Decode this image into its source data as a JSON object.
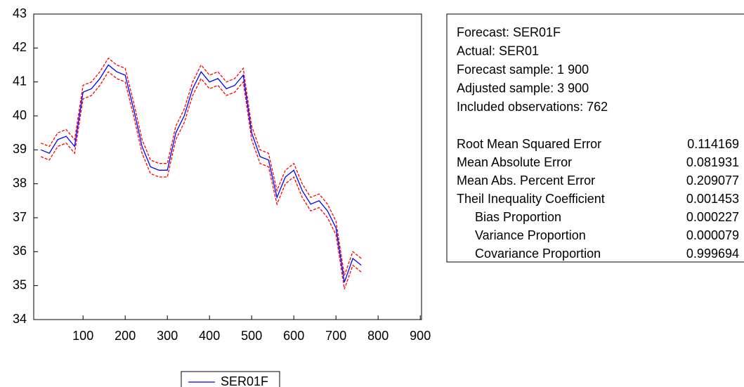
{
  "chart_data": {
    "type": "line",
    "x": [
      0,
      20,
      40,
      60,
      80,
      100,
      120,
      140,
      160,
      180,
      200,
      220,
      240,
      260,
      280,
      300,
      320,
      340,
      360,
      380,
      400,
      420,
      440,
      460,
      480,
      500,
      520,
      540,
      560,
      580,
      600,
      620,
      640,
      660,
      680,
      700,
      720,
      740,
      760
    ],
    "series": [
      {
        "name": "SER01F",
        "color": "#0000ff",
        "values": [
          39.0,
          38.9,
          39.3,
          39.4,
          39.1,
          40.7,
          40.8,
          41.1,
          41.5,
          41.3,
          41.2,
          40.2,
          39.1,
          38.5,
          38.4,
          38.4,
          39.5,
          40.0,
          40.8,
          41.3,
          41.0,
          41.1,
          40.8,
          40.9,
          41.2,
          39.5,
          38.8,
          38.7,
          37.6,
          38.2,
          38.4,
          37.8,
          37.4,
          37.5,
          37.2,
          36.7,
          35.1,
          35.8,
          35.6
        ]
      },
      {
        "color": "#ff0000",
        "dashed": true,
        "values": [
          39.2,
          39.1,
          39.5,
          39.6,
          39.3,
          40.9,
          41.0,
          41.3,
          41.7,
          41.5,
          41.4,
          40.4,
          39.3,
          38.7,
          38.6,
          38.6,
          39.7,
          40.2,
          41.0,
          41.5,
          41.2,
          41.3,
          41.0,
          41.1,
          41.4,
          39.7,
          39.0,
          38.9,
          37.8,
          38.4,
          38.6,
          38.0,
          37.6,
          37.7,
          37.4,
          36.9,
          35.3,
          36.0,
          35.8
        ]
      },
      {
        "color": "#ff0000",
        "dashed": true,
        "values": [
          38.8,
          38.7,
          39.1,
          39.2,
          38.9,
          40.5,
          40.6,
          40.9,
          41.3,
          41.1,
          41.0,
          40.0,
          38.9,
          38.3,
          38.2,
          38.2,
          39.3,
          39.8,
          40.6,
          41.1,
          40.8,
          40.9,
          40.6,
          40.7,
          41.0,
          39.3,
          38.6,
          38.5,
          37.4,
          38.0,
          38.2,
          37.6,
          37.2,
          37.3,
          37.0,
          36.5,
          34.9,
          35.6,
          35.4
        ]
      }
    ],
    "xlim": [
      -17,
      903
    ],
    "xticks": [
      100,
      200,
      300,
      400,
      500,
      600,
      700,
      800,
      900
    ],
    "ylim": [
      34,
      43
    ],
    "yticks": [
      34,
      35,
      36,
      37,
      38,
      39,
      40,
      41,
      42,
      43
    ]
  },
  "stats_box": {
    "header_lines": [
      "Forecast: SER01F",
      "Actual: SER01",
      "Forecast sample: 1 900",
      "Adjusted sample: 3 900",
      "Included observations: 762"
    ],
    "rows": [
      {
        "label": "Root Mean Squared Error",
        "value": 0.114169
      },
      {
        "label": "Mean Absolute Error",
        "value": 0.081931
      },
      {
        "label": "Mean Abs. Percent Error",
        "value": 0.209077
      },
      {
        "label": "Theil Inequality Coefficient",
        "value": 0.001453
      },
      {
        "label": "Bias Proportion",
        "value": 0.000227
      },
      {
        "label": "Variance Proportion",
        "value": 7.9e-05
      },
      {
        "label": "Covariance Proportion",
        "value": 0.999694
      }
    ]
  }
}
